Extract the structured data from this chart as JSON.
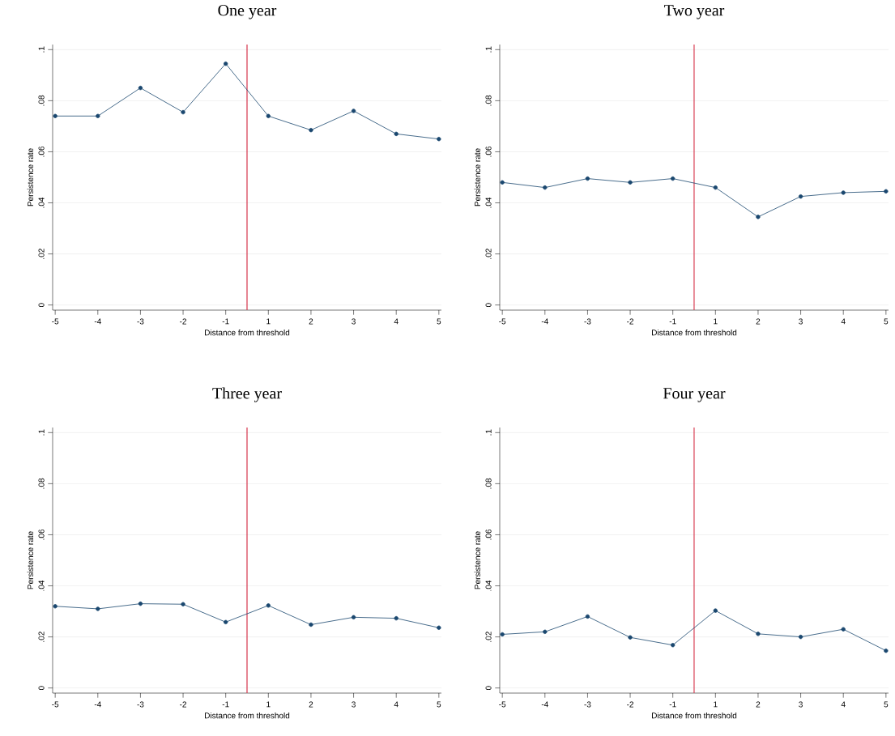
{
  "chart_data": [
    {
      "type": "line",
      "title": "One year",
      "xlabel": "Distance from threshold",
      "ylabel": "Persistence rate",
      "x": [
        -4.5,
        -3.5,
        -2.5,
        -1.5,
        -0.5,
        0.5,
        1.5,
        2.5,
        3.5,
        4.5
      ],
      "series": [
        {
          "color": "#1a476f",
          "values": [
            0.074,
            0.074,
            0.085,
            0.0755,
            0.0945,
            0.074,
            0.0685,
            0.076,
            0.067,
            0.065
          ]
        }
      ],
      "marker": "circle",
      "grid": "y",
      "xlim": [
        -4.56,
        4.56
      ],
      "xticks": [
        {
          "value": -4.5,
          "label": "-5"
        },
        {
          "value": -3.5,
          "label": "-4"
        },
        {
          "value": -2.5,
          "label": "-3"
        },
        {
          "value": -1.5,
          "label": "-2"
        },
        {
          "value": -0.5,
          "label": "-1"
        },
        {
          "value": 0.5,
          "label": "1"
        },
        {
          "value": 1.5,
          "label": "2"
        },
        {
          "value": 2.5,
          "label": "3"
        },
        {
          "value": 3.5,
          "label": "4"
        },
        {
          "value": 4.5,
          "label": "5"
        }
      ],
      "ylim": [
        -0.002,
        0.102
      ],
      "yticks": [
        0,
        {
          "value": 0.02,
          "label": ".02"
        },
        {
          "value": 0.04,
          "label": ".04"
        },
        {
          "value": 0.06,
          "label": ".06"
        },
        {
          "value": 0.08,
          "label": ".08"
        },
        {
          "value": 0.1,
          "label": ".1"
        }
      ],
      "ref_lines": [
        {
          "axis": "x",
          "value": 0,
          "color": "#d6334a"
        }
      ]
    },
    {
      "type": "line",
      "title": "Two year",
      "xlabel": "Distance from threshold",
      "ylabel": "Persistence rate",
      "x": [
        -4.5,
        -3.5,
        -2.5,
        -1.5,
        -0.5,
        0.5,
        1.5,
        2.5,
        3.5,
        4.5
      ],
      "series": [
        {
          "color": "#1a476f",
          "values": [
            0.048,
            0.046,
            0.0495,
            0.048,
            0.0495,
            0.046,
            0.0345,
            0.0425,
            0.044,
            0.0445
          ]
        }
      ],
      "marker": "circle",
      "grid": "y",
      "xlim": [
        -4.56,
        4.56
      ],
      "xticks": [
        {
          "value": -4.5,
          "label": "-5"
        },
        {
          "value": -3.5,
          "label": "-4"
        },
        {
          "value": -2.5,
          "label": "-3"
        },
        {
          "value": -1.5,
          "label": "-2"
        },
        {
          "value": -0.5,
          "label": "-1"
        },
        {
          "value": 0.5,
          "label": "1"
        },
        {
          "value": 1.5,
          "label": "2"
        },
        {
          "value": 2.5,
          "label": "3"
        },
        {
          "value": 3.5,
          "label": "4"
        },
        {
          "value": 4.5,
          "label": "5"
        }
      ],
      "ylim": [
        -0.002,
        0.102
      ],
      "yticks": [
        0,
        {
          "value": 0.02,
          "label": ".02"
        },
        {
          "value": 0.04,
          "label": ".04"
        },
        {
          "value": 0.06,
          "label": ".06"
        },
        {
          "value": 0.08,
          "label": ".08"
        },
        {
          "value": 0.1,
          "label": ".1"
        }
      ],
      "ref_lines": [
        {
          "axis": "x",
          "value": 0,
          "color": "#d6334a"
        }
      ]
    },
    {
      "type": "line",
      "title": "Three year",
      "xlabel": "Distance from threshold",
      "ylabel": "Persistence rate",
      "x": [
        -4.5,
        -3.5,
        -2.5,
        -1.5,
        -0.5,
        0.5,
        1.5,
        2.5,
        3.5,
        4.5
      ],
      "series": [
        {
          "color": "#1a476f",
          "values": [
            0.032,
            0.031,
            0.033,
            0.0328,
            0.0258,
            0.0323,
            0.0248,
            0.0277,
            0.0273,
            0.0236
          ]
        }
      ],
      "marker": "circle",
      "grid": "y",
      "xlim": [
        -4.56,
        4.56
      ],
      "xticks": [
        {
          "value": -4.5,
          "label": "-5"
        },
        {
          "value": -3.5,
          "label": "-4"
        },
        {
          "value": -2.5,
          "label": "-3"
        },
        {
          "value": -1.5,
          "label": "-2"
        },
        {
          "value": -0.5,
          "label": "-1"
        },
        {
          "value": 0.5,
          "label": "1"
        },
        {
          "value": 1.5,
          "label": "2"
        },
        {
          "value": 2.5,
          "label": "3"
        },
        {
          "value": 3.5,
          "label": "4"
        },
        {
          "value": 4.5,
          "label": "5"
        }
      ],
      "ylim": [
        -0.002,
        0.102
      ],
      "yticks": [
        0,
        {
          "value": 0.02,
          "label": ".02"
        },
        {
          "value": 0.04,
          "label": ".04"
        },
        {
          "value": 0.06,
          "label": ".06"
        },
        {
          "value": 0.08,
          "label": ".08"
        },
        {
          "value": 0.1,
          "label": ".1"
        }
      ],
      "ref_lines": [
        {
          "axis": "x",
          "value": 0,
          "color": "#d6334a"
        }
      ]
    },
    {
      "type": "line",
      "title": "Four year",
      "xlabel": "Distance from threshold",
      "ylabel": "Persistence rate",
      "x": [
        -4.5,
        -3.5,
        -2.5,
        -1.5,
        -0.5,
        0.5,
        1.5,
        2.5,
        3.5,
        4.5
      ],
      "series": [
        {
          "color": "#1a476f",
          "values": [
            0.021,
            0.022,
            0.028,
            0.0198,
            0.0168,
            0.0303,
            0.0212,
            0.02,
            0.023,
            0.0146
          ]
        }
      ],
      "marker": "circle",
      "grid": "y",
      "xlim": [
        -4.56,
        4.56
      ],
      "xticks": [
        {
          "value": -4.5,
          "label": "-5"
        },
        {
          "value": -3.5,
          "label": "-4"
        },
        {
          "value": -2.5,
          "label": "-3"
        },
        {
          "value": -1.5,
          "label": "-2"
        },
        {
          "value": -0.5,
          "label": "-1"
        },
        {
          "value": 0.5,
          "label": "1"
        },
        {
          "value": 1.5,
          "label": "2"
        },
        {
          "value": 2.5,
          "label": "3"
        },
        {
          "value": 3.5,
          "label": "4"
        },
        {
          "value": 4.5,
          "label": "5"
        }
      ],
      "ylim": [
        -0.002,
        0.102
      ],
      "yticks": [
        0,
        {
          "value": 0.02,
          "label": ".02"
        },
        {
          "value": 0.04,
          "label": ".04"
        },
        {
          "value": 0.06,
          "label": ".06"
        },
        {
          "value": 0.08,
          "label": ".08"
        },
        {
          "value": 0.1,
          "label": ".1"
        }
      ],
      "ref_lines": [
        {
          "axis": "x",
          "value": 0,
          "color": "#d6334a"
        }
      ]
    }
  ]
}
